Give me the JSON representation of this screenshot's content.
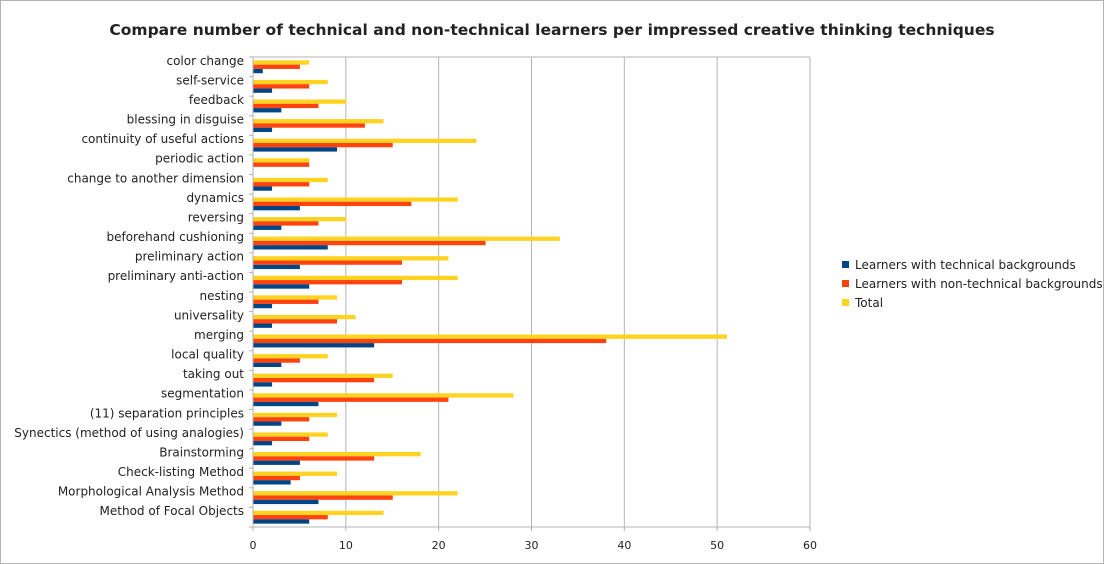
{
  "chart_data": {
    "type": "bar",
    "orientation": "horizontal",
    "title": "Compare number of technical and non-technical learners per impressed creative thinking techniques",
    "xlabel": "",
    "ylabel": "",
    "xlim": [
      0,
      60
    ],
    "xticks": [
      "0",
      "10",
      "20",
      "30",
      "40",
      "50",
      "60"
    ],
    "grid": true,
    "legend_position": "right",
    "categories": [
      "color change",
      "self-service",
      "feedback",
      "blessing in disguise",
      "continuity of useful actions",
      "periodic action",
      "change to another dimension",
      "dynamics",
      "reversing",
      "beforehand cushioning",
      "preliminary action",
      "preliminary anti-action",
      "nesting",
      "universality",
      "merging",
      "local quality",
      "taking out",
      "segmentation",
      "(11) separation principles",
      "Synectics (method of using analogies)",
      "Brainstorming",
      "Check-listing Method",
      "Morphological Analysis Method",
      "Method of Focal Objects"
    ],
    "series": [
      {
        "name": "Learners with technical backgrounds",
        "color": "#004586",
        "values": [
          1,
          2,
          3,
          2,
          9,
          0,
          2,
          5,
          3,
          8,
          5,
          6,
          2,
          2,
          13,
          3,
          2,
          7,
          3,
          2,
          5,
          4,
          7,
          6
        ]
      },
      {
        "name": "Learners with non-technical backgrounds",
        "color": "#ff420e",
        "values": [
          5,
          6,
          7,
          12,
          15,
          6,
          6,
          17,
          7,
          25,
          16,
          16,
          7,
          9,
          38,
          5,
          13,
          21,
          6,
          6,
          13,
          5,
          15,
          8
        ]
      },
      {
        "name": "Total",
        "color": "#ffd320",
        "values": [
          6,
          8,
          10,
          14,
          24,
          6,
          8,
          22,
          10,
          33,
          21,
          22,
          9,
          11,
          51,
          8,
          15,
          28,
          9,
          8,
          18,
          9,
          22,
          14
        ]
      }
    ]
  }
}
